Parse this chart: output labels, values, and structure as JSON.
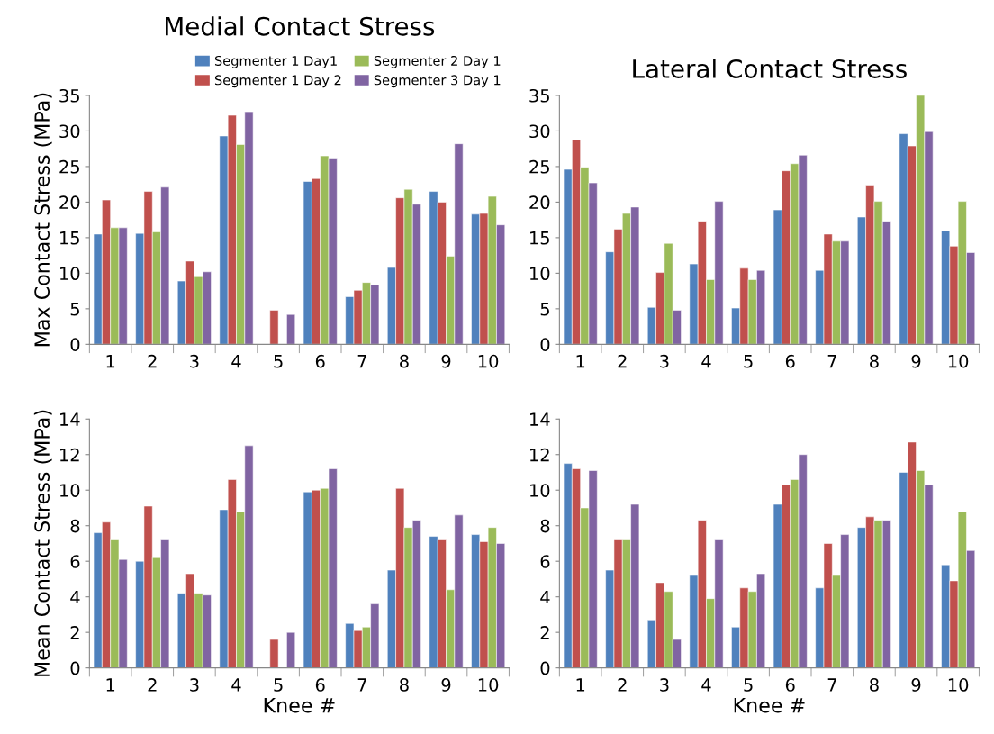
{
  "chart_data": [
    {
      "type": "bar",
      "title": "Medial Contact Stress",
      "ylabel": "Max Contact Stress (MPa)",
      "categories": [
        "1",
        "2",
        "3",
        "4",
        "5",
        "6",
        "7",
        "8",
        "9",
        "10"
      ],
      "ylim": [
        0,
        35
      ],
      "yticks": [
        0,
        5,
        10,
        15,
        20,
        25,
        30,
        35
      ],
      "grid": false,
      "legend": "top right",
      "series": [
        {
          "name": "Segmenter 1 Day1",
          "color": "#4f81bd",
          "values": [
            15.5,
            15.6,
            8.9,
            29.3,
            null,
            22.9,
            6.7,
            10.8,
            21.5,
            18.3
          ]
        },
        {
          "name": "Segmenter 1 Day 2",
          "color": "#c0504d",
          "values": [
            20.3,
            21.5,
            11.7,
            32.2,
            4.8,
            23.3,
            7.6,
            20.6,
            20.0,
            18.4
          ]
        },
        {
          "name": "Segmenter 2 Day 1",
          "color": "#9bbb59",
          "values": [
            16.4,
            15.8,
            9.5,
            28.1,
            null,
            26.5,
            8.7,
            21.8,
            12.4,
            20.8
          ]
        },
        {
          "name": "Segmenter 3 Day 1",
          "color": "#8064a2",
          "values": [
            16.4,
            22.1,
            10.2,
            32.7,
            4.2,
            26.2,
            8.4,
            19.7,
            28.2,
            16.8
          ]
        }
      ]
    },
    {
      "type": "bar",
      "title": "Lateral Contact Stress",
      "categories": [
        "1",
        "2",
        "3",
        "4",
        "5",
        "6",
        "7",
        "8",
        "9",
        "10"
      ],
      "ylim": [
        0,
        35
      ],
      "yticks": [
        0,
        5,
        10,
        15,
        20,
        25,
        30,
        35
      ],
      "grid": false,
      "series": [
        {
          "color": "#4f81bd",
          "values": [
            24.6,
            13.0,
            5.2,
            11.3,
            5.1,
            18.9,
            10.4,
            17.9,
            29.6,
            16.0
          ]
        },
        {
          "color": "#c0504d",
          "values": [
            28.8,
            16.2,
            10.1,
            17.3,
            10.7,
            24.4,
            15.5,
            22.4,
            27.9,
            13.8
          ]
        },
        {
          "color": "#9bbb59",
          "values": [
            24.9,
            18.4,
            14.2,
            9.1,
            9.1,
            25.4,
            14.5,
            20.1,
            35.0,
            20.1
          ]
        },
        {
          "color": "#8064a2",
          "values": [
            22.7,
            19.3,
            4.8,
            20.1,
            10.4,
            26.6,
            14.5,
            17.3,
            29.9,
            12.9
          ]
        }
      ]
    },
    {
      "type": "bar",
      "ylabel": "Mean Contact Stress (MPa)",
      "xlabel": "Knee #",
      "categories": [
        "1",
        "2",
        "3",
        "4",
        "5",
        "6",
        "7",
        "8",
        "9",
        "10"
      ],
      "ylim": [
        0,
        14
      ],
      "yticks": [
        0,
        2,
        4,
        6,
        8,
        10,
        12,
        14
      ],
      "grid": false,
      "series": [
        {
          "color": "#4f81bd",
          "values": [
            7.6,
            6.0,
            4.2,
            8.9,
            null,
            9.9,
            2.5,
            5.5,
            7.4,
            7.5
          ]
        },
        {
          "color": "#c0504d",
          "values": [
            8.2,
            9.1,
            5.3,
            10.6,
            1.6,
            10.0,
            2.1,
            10.1,
            7.2,
            7.1
          ]
        },
        {
          "color": "#9bbb59",
          "values": [
            7.2,
            6.2,
            4.2,
            8.8,
            null,
            10.1,
            2.3,
            7.9,
            4.4,
            7.9
          ]
        },
        {
          "color": "#8064a2",
          "values": [
            6.1,
            7.2,
            4.1,
            12.5,
            2.0,
            11.2,
            3.6,
            8.3,
            8.6,
            7.0
          ]
        }
      ]
    },
    {
      "type": "bar",
      "xlabel": "Knee #",
      "categories": [
        "1",
        "2",
        "3",
        "4",
        "5",
        "6",
        "7",
        "8",
        "9",
        "10"
      ],
      "ylim": [
        0,
        14
      ],
      "yticks": [
        0,
        2,
        4,
        6,
        8,
        10,
        12,
        14
      ],
      "grid": false,
      "series": [
        {
          "color": "#4f81bd",
          "values": [
            11.5,
            5.5,
            2.7,
            5.2,
            2.3,
            9.2,
            4.5,
            7.9,
            11.0,
            5.8
          ]
        },
        {
          "color": "#c0504d",
          "values": [
            11.2,
            7.2,
            4.8,
            8.3,
            4.5,
            10.3,
            7.0,
            8.5,
            12.7,
            4.9
          ]
        },
        {
          "color": "#9bbb59",
          "values": [
            9.0,
            7.2,
            4.3,
            3.9,
            4.3,
            10.6,
            5.2,
            8.3,
            11.1,
            8.8
          ]
        },
        {
          "color": "#8064a2",
          "values": [
            11.1,
            9.2,
            1.6,
            7.2,
            5.3,
            12.0,
            7.5,
            8.3,
            10.3,
            6.6
          ]
        }
      ]
    }
  ]
}
